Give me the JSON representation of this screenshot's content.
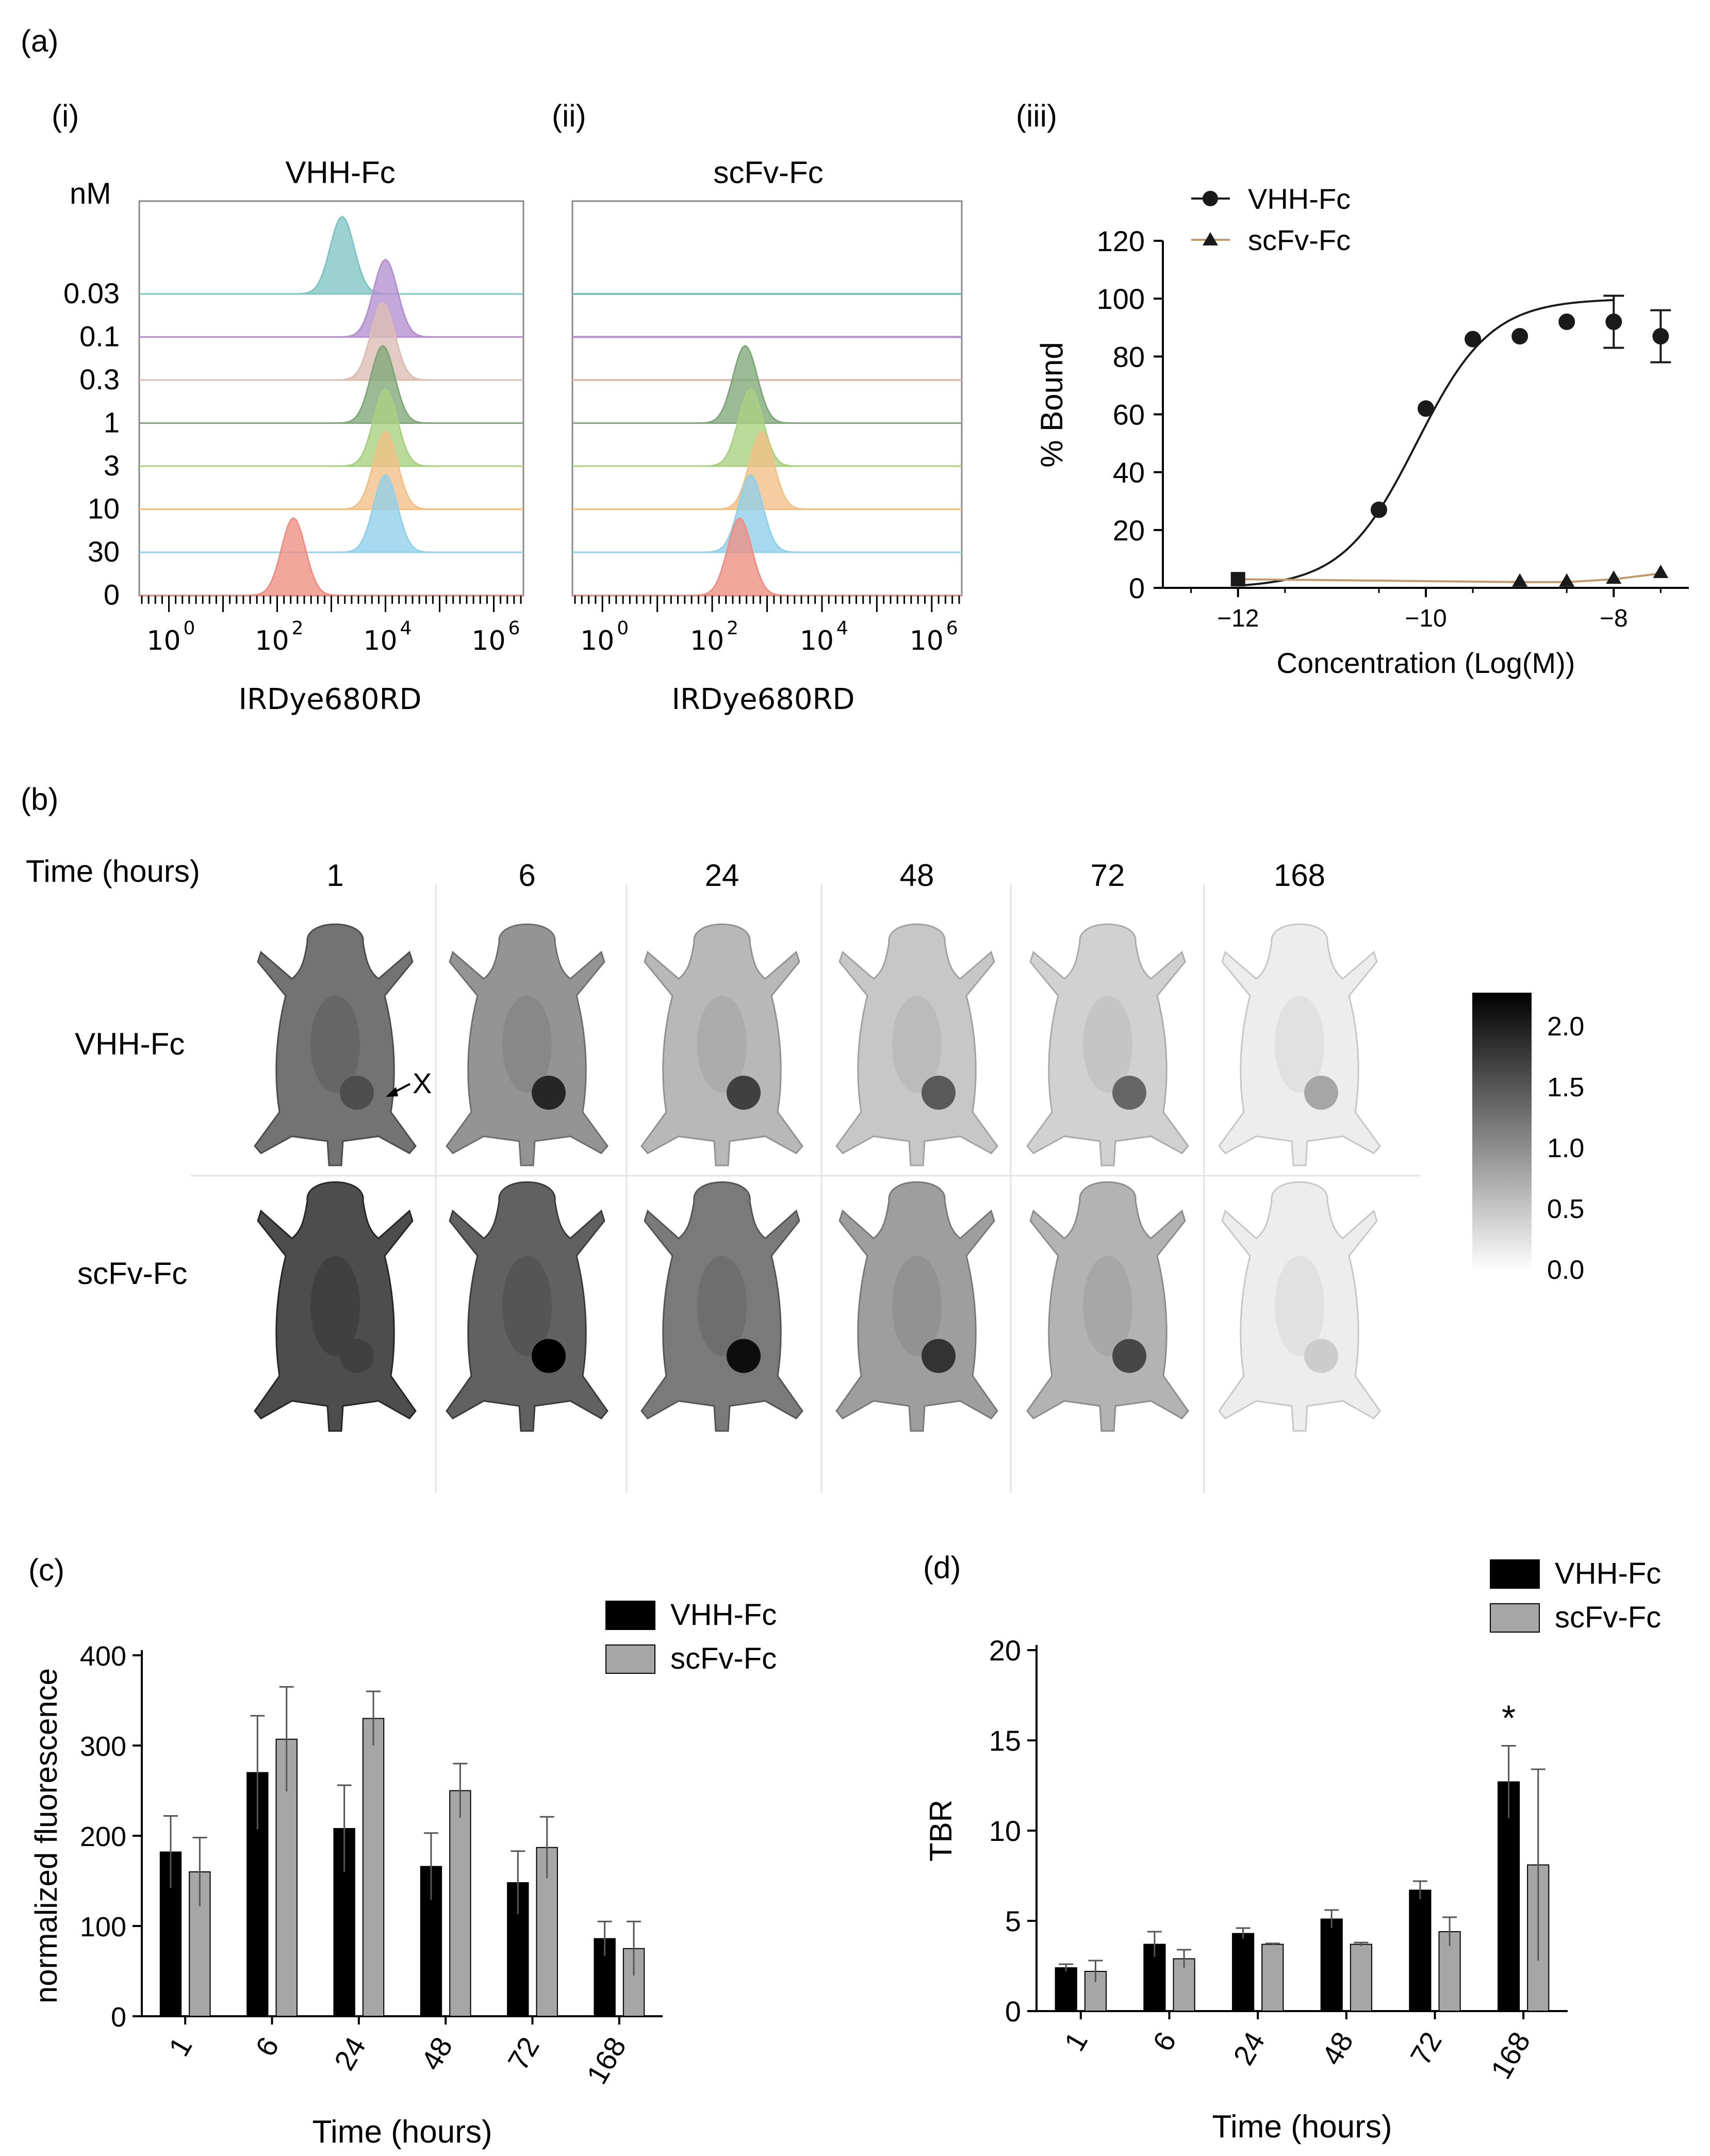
{
  "panel_labels": {
    "a": "(a)",
    "a_i": "(i)",
    "a_ii": "(ii)",
    "a_iii": "(iii)",
    "b": "(b)",
    "c": "(c)",
    "d": "(d)"
  },
  "colors": {
    "hist_0.03": "#7fc4c4",
    "hist_0.1": "#b58fd0",
    "hist_0.3": "#dcbdb2",
    "hist_1": "#7fa878",
    "hist_3": "#a8d17f",
    "hist_10": "#f2bf86",
    "hist_30": "#8fd0ea",
    "hist_0": "#ee8e82",
    "vhh_line": "#1a1a1a",
    "scfv_line": "#c49a6c",
    "bar_vhh": "#000000",
    "bar_scfv": "#a6a6a6"
  },
  "histograms": {
    "nM_label": "nM",
    "concentrations": [
      "0.03",
      "0.1",
      "0.3",
      "1",
      "3",
      "10",
      "30",
      "0"
    ],
    "xlabel": "IRDye680RD",
    "xtick_labels": [
      [
        "10",
        "0"
      ],
      [
        "10",
        "2"
      ],
      [
        "10",
        "4"
      ],
      [
        "10",
        "6"
      ]
    ],
    "vhh": {
      "title": "VHH-Fc",
      "peaks_log10": {
        "0.03": 3.2,
        "0.1": 4.0,
        "0.3": 3.95,
        "1": 3.95,
        "3": 4.0,
        "10": 4.0,
        "30": 4.0,
        "0": 2.3
      }
    },
    "scfv": {
      "title": "scFv-Fc",
      "peaks_log10": {
        "1": 2.6,
        "3": 2.7,
        "10": 2.9,
        "30": 2.7,
        "0": 2.5
      }
    }
  },
  "binding": {
    "ylabel": "% Bound",
    "xlabel": "Concentration (Log(M))",
    "legend": [
      "VHH-Fc",
      "scFv-Fc"
    ],
    "yticks": [
      "0",
      "20",
      "40",
      "60",
      "80",
      "100",
      "120"
    ],
    "xticks": [
      "-12",
      "-10",
      "-8"
    ]
  },
  "imaging": {
    "time_header": "Time (hours)",
    "times": [
      "1",
      "6",
      "24",
      "48",
      "72",
      "168"
    ],
    "rows": [
      "VHH-Fc",
      "scFv-Fc"
    ],
    "tumor_marker": "X",
    "colorbar_ticks": [
      "2.0",
      "1.5",
      "1.0",
      "0.5",
      "0.0"
    ],
    "vhh_intensity": [
      0.55,
      0.42,
      0.28,
      0.22,
      0.18,
      0.07
    ],
    "scfv_intensity": [
      0.7,
      0.62,
      0.52,
      0.38,
      0.3,
      0.07
    ],
    "vhh_tumor": [
      0.7,
      0.85,
      0.75,
      0.65,
      0.6,
      0.35
    ],
    "scfv_tumor": [
      0.75,
      1.0,
      0.95,
      0.8,
      0.72,
      0.2
    ]
  },
  "chart_data": [
    {
      "type": "scatter",
      "panel": "(iii)",
      "xlabel": "Concentration (Log(M))",
      "ylabel": "% Bound",
      "xlim": [
        -12.8,
        -7.2
      ],
      "ylim": [
        0,
        120
      ],
      "series": [
        {
          "name": "VHH-Fc",
          "x": [
            -12,
            -10.5,
            -10,
            -9.5,
            -9,
            -8.5,
            -8,
            -7.5
          ],
          "y": [
            3,
            27,
            62,
            86,
            87,
            92,
            92,
            87
          ],
          "err": [
            0,
            0,
            0,
            0,
            0,
            0,
            9,
            9
          ],
          "fit": {
            "bottom": 0,
            "top": 100,
            "logEC50": -10.1,
            "hill": 1.1
          }
        },
        {
          "name": "scFv-Fc",
          "x": [
            -12,
            -9,
            -8.5,
            -8,
            -7.5
          ],
          "y": [
            3,
            2,
            2,
            3,
            5
          ],
          "err": [
            0,
            0,
            0,
            0,
            0
          ]
        }
      ]
    },
    {
      "type": "bar",
      "panel": "(c)",
      "xlabel": "Time (hours)",
      "ylabel": "normalized fluorescence",
      "categories": [
        "1",
        "6",
        "24",
        "48",
        "72",
        "168"
      ],
      "ylim": [
        0,
        400
      ],
      "yticks": [
        "0",
        "100",
        "200",
        "300",
        "400"
      ],
      "series": [
        {
          "name": "VHH-Fc",
          "values": [
            182,
            270,
            208,
            166,
            148,
            86
          ],
          "err": [
            40,
            63,
            48,
            37,
            35,
            19
          ]
        },
        {
          "name": "scFv-Fc",
          "values": [
            160,
            307,
            330,
            250,
            187,
            75
          ],
          "err": [
            38,
            58,
            30,
            30,
            34,
            30
          ]
        }
      ]
    },
    {
      "type": "bar",
      "panel": "(d)",
      "xlabel": "Time (hours)",
      "ylabel": "TBR",
      "categories": [
        "1",
        "6",
        "24",
        "48",
        "72",
        "168"
      ],
      "ylim": [
        0,
        20
      ],
      "yticks": [
        "0",
        "5",
        "10",
        "15",
        "20"
      ],
      "annotation": "*",
      "series": [
        {
          "name": "VHH-Fc",
          "values": [
            2.4,
            3.7,
            4.3,
            5.1,
            6.7,
            12.7
          ],
          "err": [
            0.2,
            0.7,
            0.3,
            0.5,
            0.5,
            2.0
          ]
        },
        {
          "name": "scFv-Fc",
          "values": [
            2.2,
            2.9,
            3.7,
            3.7,
            4.4,
            8.1
          ],
          "err": [
            0.6,
            0.5,
            0.05,
            0.1,
            0.8,
            5.3
          ]
        }
      ]
    }
  ]
}
